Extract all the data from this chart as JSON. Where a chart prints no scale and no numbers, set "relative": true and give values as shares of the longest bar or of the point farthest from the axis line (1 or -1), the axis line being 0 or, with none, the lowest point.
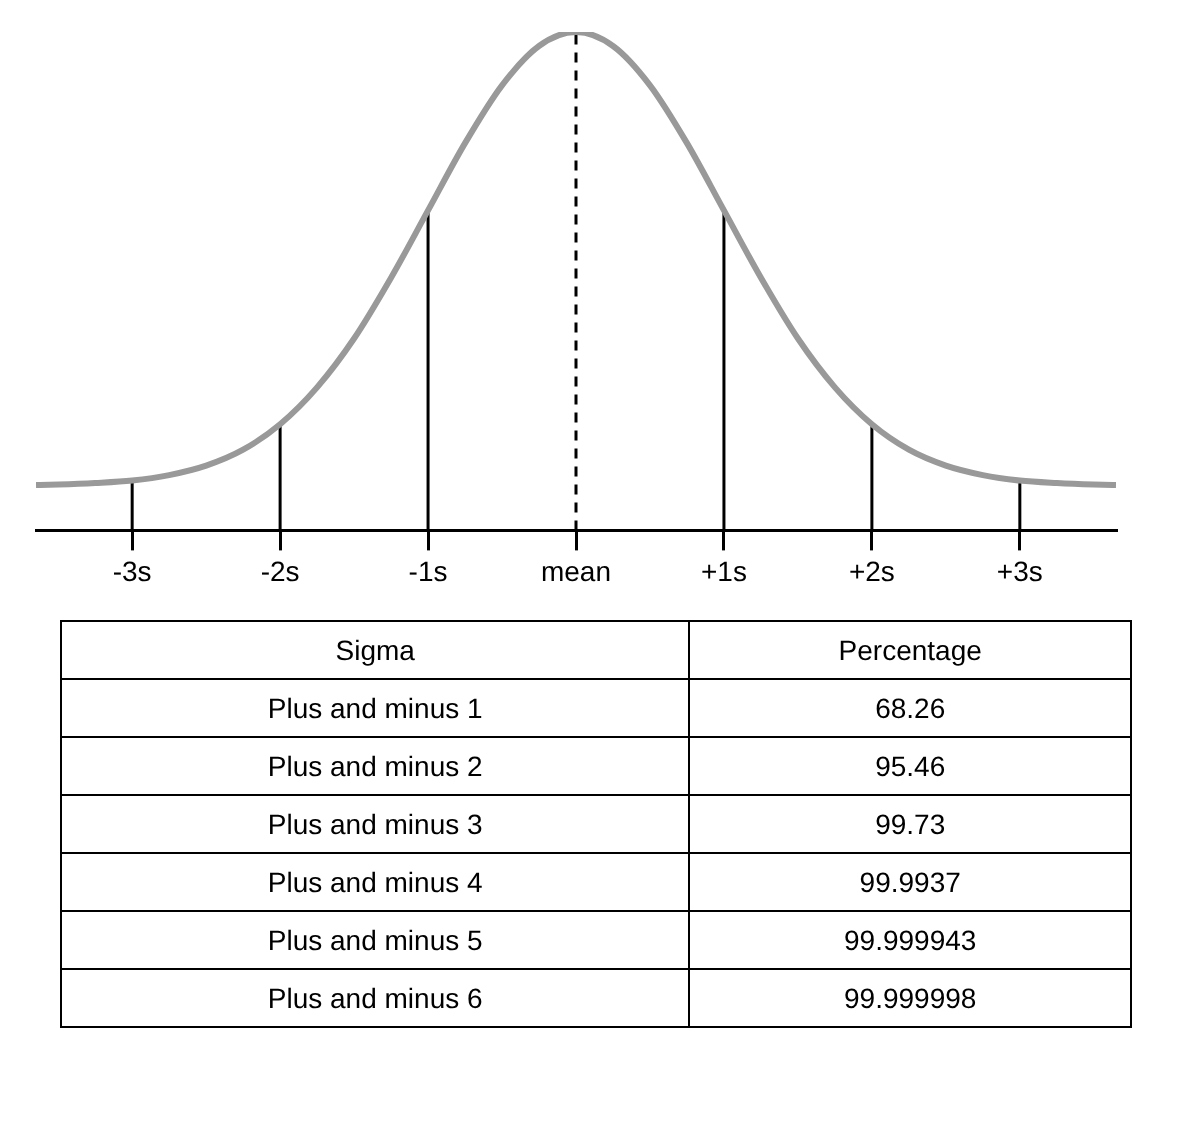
{
  "chart_data": [
    {
      "type": "line",
      "relative": true,
      "x": [
        -3.65,
        -3.5,
        -3.25,
        -3,
        -2.75,
        -2.5,
        -2.25,
        -2,
        -1.75,
        -1.5,
        -1.25,
        -1,
        -0.75,
        -0.5,
        -0.25,
        0,
        0.25,
        0.5,
        0.75,
        1,
        1.25,
        1.5,
        1.75,
        2,
        2.25,
        2.5,
        2.75,
        3,
        3.25,
        3.5,
        3.65
      ],
      "series": [
        {
          "color": "#999999",
          "values": [
            0.091,
            0.092,
            0.095,
            0.1,
            0.111,
            0.13,
            0.162,
            0.213,
            0.287,
            0.385,
            0.507,
            0.642,
            0.777,
            0.893,
            0.972,
            1,
            0.972,
            0.893,
            0.777,
            0.642,
            0.507,
            0.385,
            0.287,
            0.213,
            0.162,
            0.13,
            0.111,
            0.1,
            0.095,
            0.092,
            0.091
          ]
        }
      ],
      "xlim": [
        -3.65,
        3.65
      ],
      "xticks": [
        {
          "value": -3,
          "label": "-3s"
        },
        {
          "value": -2,
          "label": "-2s"
        },
        {
          "value": -1,
          "label": "-1s"
        },
        {
          "value": 0,
          "label": "mean"
        },
        {
          "value": 1,
          "label": "+1s"
        },
        {
          "value": 2,
          "label": "+2s"
        },
        {
          "value": 3,
          "label": "+3s"
        }
      ],
      "ref_lines": [
        {
          "axis": "x",
          "value": -3,
          "color": "#000000",
          "line_style": "solid"
        },
        {
          "axis": "x",
          "value": -2,
          "color": "#000000",
          "line_style": "solid"
        },
        {
          "axis": "x",
          "value": -1,
          "color": "#000000",
          "line_style": "solid"
        },
        {
          "axis": "x",
          "value": 0,
          "color": "#000000",
          "line_style": "dashed"
        },
        {
          "axis": "x",
          "value": 1,
          "color": "#000000",
          "line_style": "solid"
        },
        {
          "axis": "x",
          "value": 2,
          "color": "#000000",
          "line_style": "solid"
        },
        {
          "axis": "x",
          "value": 3,
          "color": "#000000",
          "line_style": "solid"
        }
      ],
      "marker": "none",
      "line_style": "solid",
      "grid": false,
      "legend": false
    },
    {
      "type": "other",
      "categories": [
        "Plus and minus 1",
        "Plus and minus 2",
        "Plus and minus 3",
        "Plus and minus 4",
        "Plus and minus 5",
        "Plus and minus 6"
      ],
      "values": [
        68.26,
        95.46,
        99.73,
        99.9937,
        99.999943,
        99.999998
      ],
      "data_labels": true,
      "annotations": [
        "Sigma",
        "Percentage"
      ]
    }
  ]
}
